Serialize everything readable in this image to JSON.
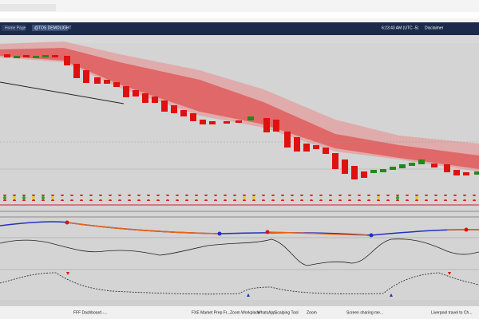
{
  "browser": {
    "tabs": [
      "Home Page",
      "@TOS DEMOLIGHT"
    ],
    "clock": "6:23:43 AM (UTC -5)",
    "disclaimer": "Disclaimer"
  },
  "taskbar": {
    "items": [
      "FFF Dashboard -...",
      "FXE Market Prep Fr...",
      "Zoom Workplace",
      "WhatsApp",
      "Scalping Tool",
      "Zoom",
      "Screen sharing me...",
      "Liverpool travel to Ch..."
    ]
  }
}
